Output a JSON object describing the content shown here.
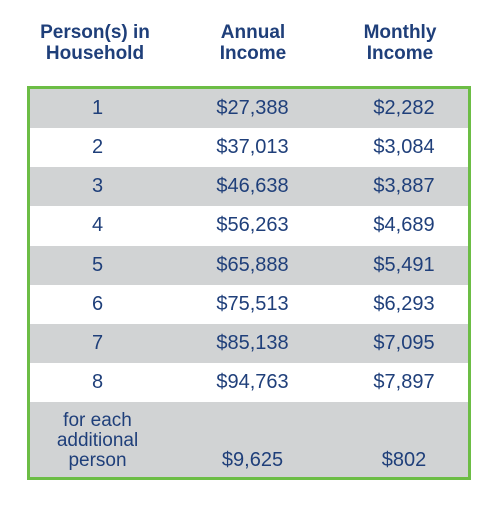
{
  "headers": {
    "household": [
      "Person(s) in",
      "Household"
    ],
    "annual": [
      "Annual",
      "Income"
    ],
    "monthly": [
      "Monthly",
      "Income"
    ]
  },
  "rows": [
    {
      "persons": "1",
      "annual": "$27,388",
      "monthly": "$2,282"
    },
    {
      "persons": "2",
      "annual": "$37,013",
      "monthly": "$3,084"
    },
    {
      "persons": "3",
      "annual": "$46,638",
      "monthly": "$3,887"
    },
    {
      "persons": "4",
      "annual": "$56,263",
      "monthly": "$4,689"
    },
    {
      "persons": "5",
      "annual": "$65,888",
      "monthly": "$5,491"
    },
    {
      "persons": "6",
      "annual": "$75,513",
      "monthly": "$6,293"
    },
    {
      "persons": "7",
      "annual": "$85,138",
      "monthly": "$7,095"
    },
    {
      "persons": "8",
      "annual": "$94,763",
      "monthly": "$7,897"
    }
  ],
  "additional": {
    "label": [
      "for each",
      "additional",
      "person"
    ],
    "annual": "$9,625",
    "monthly": "$802"
  },
  "colors": {
    "text": "#1f3f7a",
    "border": "#6cbd45",
    "shade": "#d1d3d4"
  }
}
